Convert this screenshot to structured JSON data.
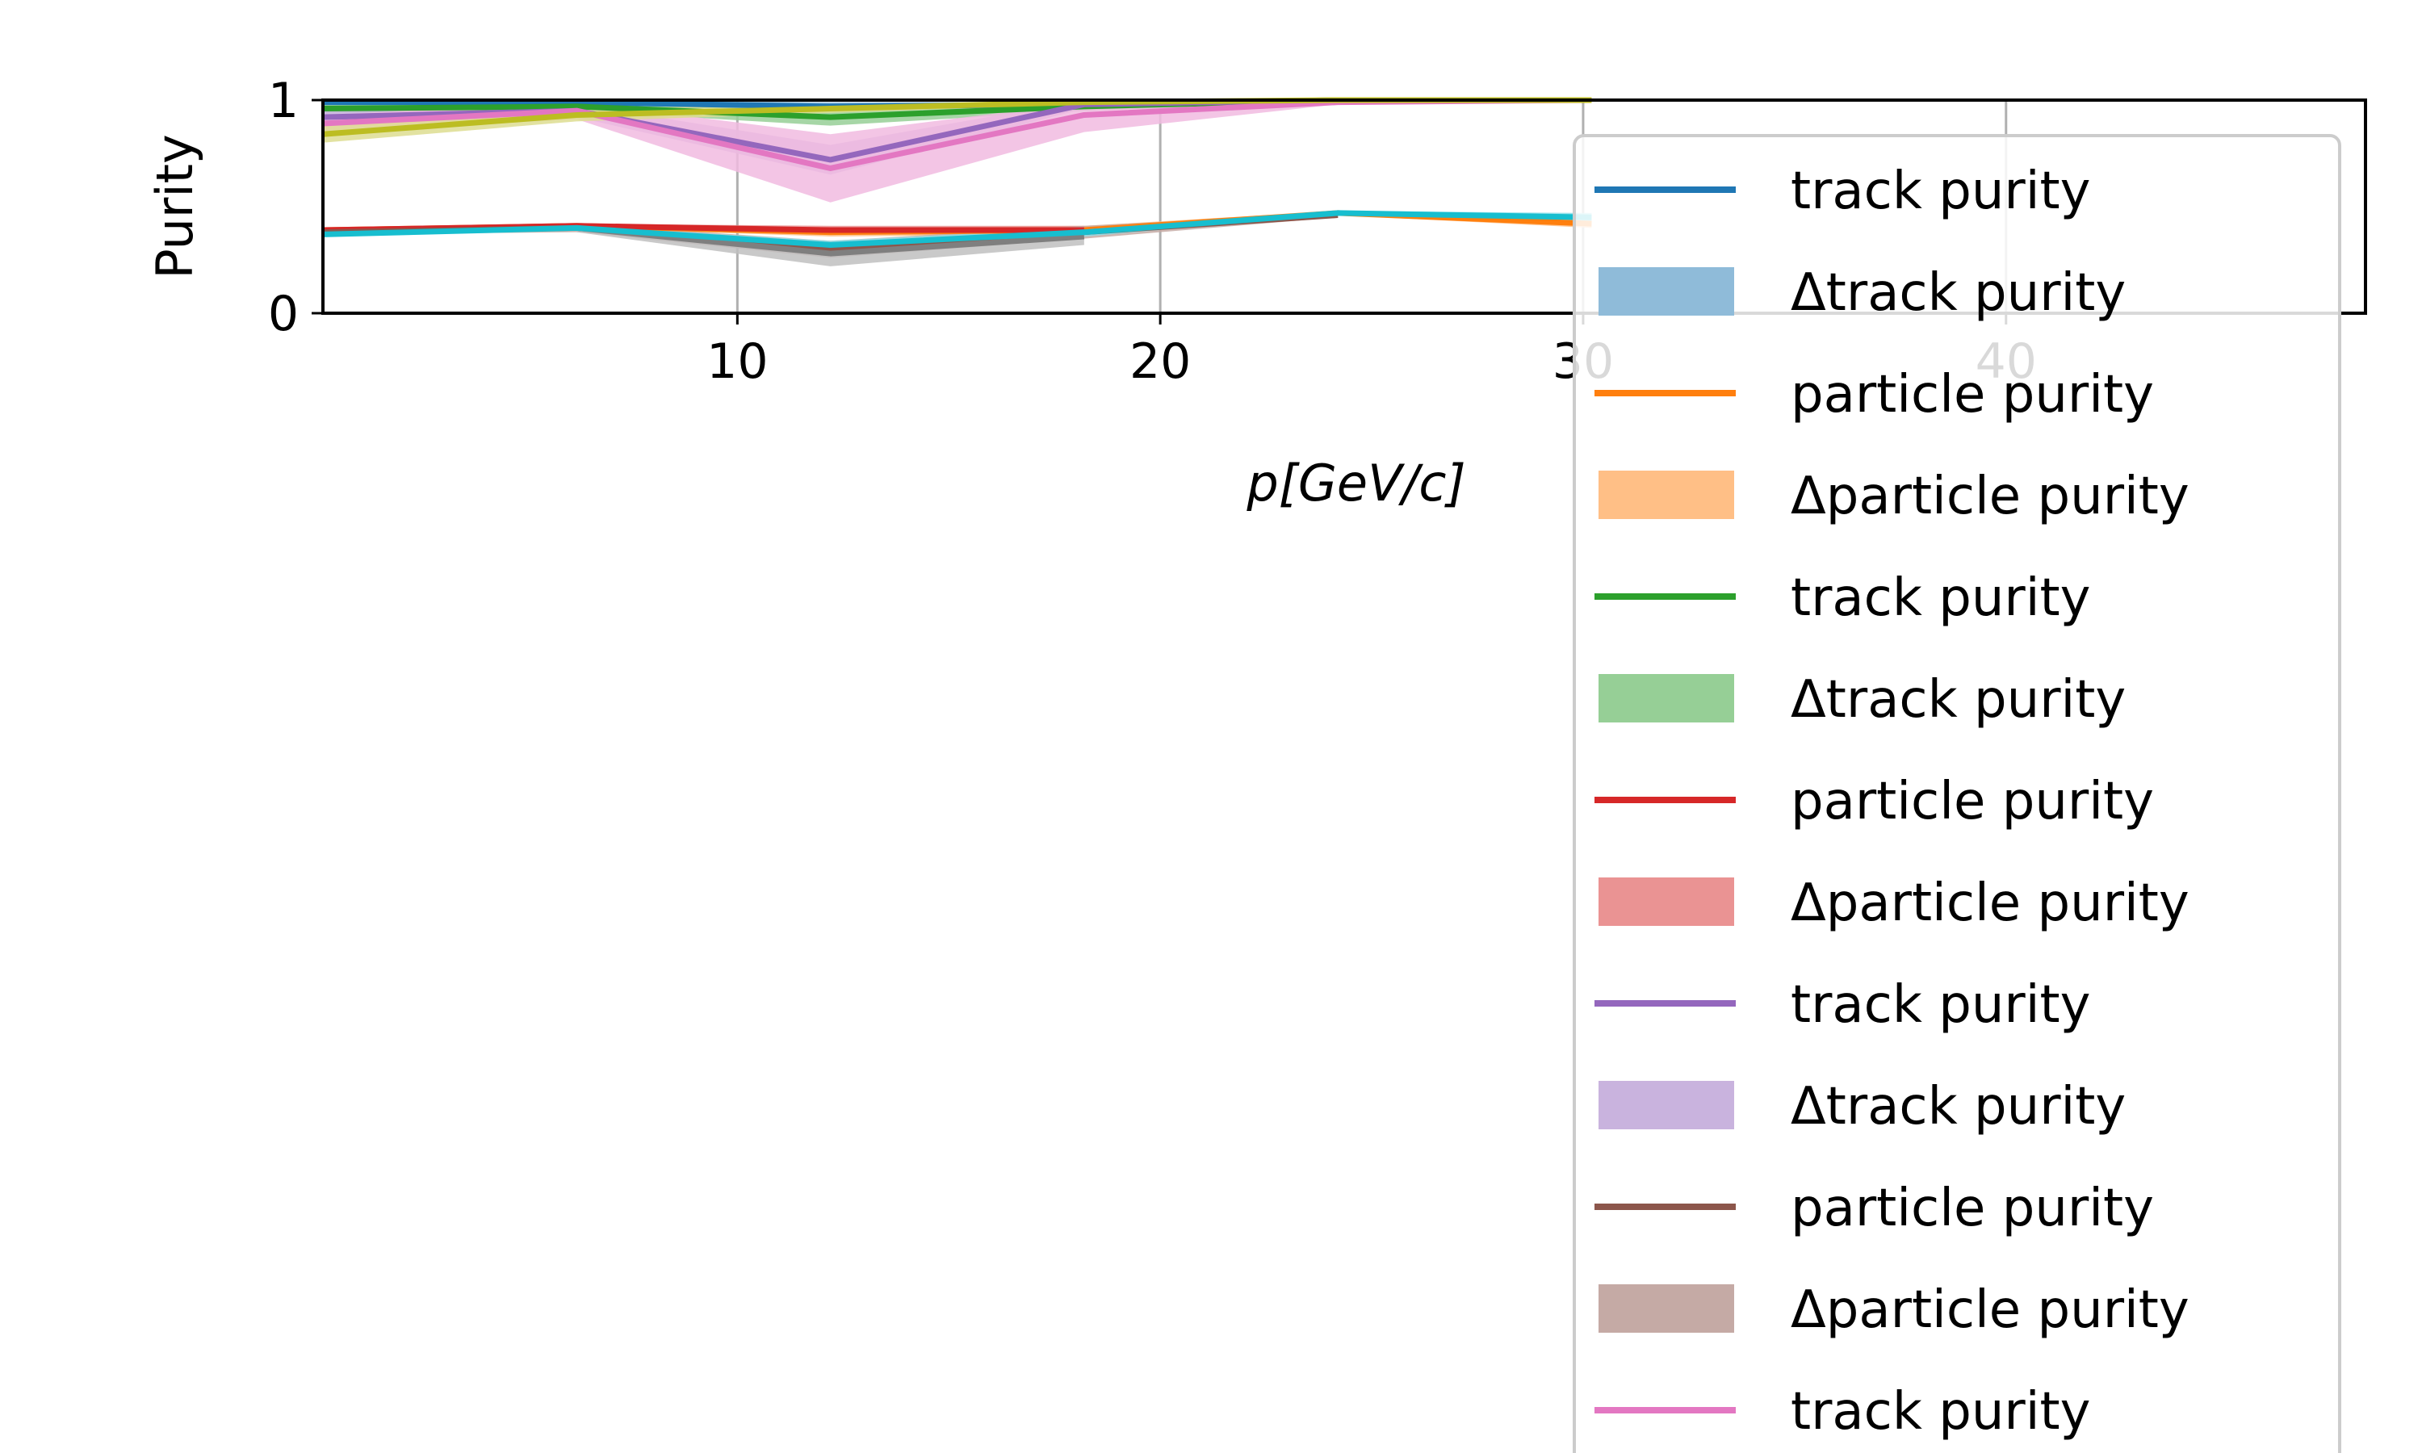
{
  "chart_data": {
    "type": "line",
    "xlabel": "p[GeV/c]",
    "ylabel": "Purity",
    "xlim": [
      0.2,
      48.5
    ],
    "ylim": [
      0,
      1
    ],
    "xticks": [
      10,
      20,
      30,
      40
    ],
    "yticks": [
      0,
      1
    ],
    "grid": true,
    "legend_position": "right",
    "series": [
      {
        "name": "track purity",
        "color": "#1f77b4",
        "band_color": "#8fbbd9",
        "x": [
          0.2,
          6.2,
          12.2,
          18.2,
          24.2,
          30.2
        ],
        "y": [
          0.99,
          0.99,
          0.97,
          0.98,
          1.0,
          1.0
        ],
        "band_lo": [
          0.98,
          0.98,
          0.95,
          0.97,
          0.99,
          0.99
        ],
        "band_hi": [
          1.0,
          1.0,
          0.99,
          0.99,
          1.0,
          1.0
        ]
      },
      {
        "name": "particle purity",
        "color": "#ff7f0e",
        "band_color": "#ffbf86",
        "x": [
          0.2,
          6.2,
          12.2,
          18.2,
          24.2,
          30.2
        ],
        "y": [
          0.39,
          0.41,
          0.38,
          0.39,
          0.47,
          0.42
        ],
        "band_lo": [
          0.38,
          0.4,
          0.36,
          0.37,
          0.46,
          0.4
        ],
        "band_hi": [
          0.4,
          0.42,
          0.4,
          0.41,
          0.48,
          0.44
        ]
      },
      {
        "name": "track purity",
        "color": "#2ca02c",
        "band_color": "#96cf96",
        "x": [
          0.2,
          6.2,
          12.2,
          18.2,
          24.2,
          30.2
        ],
        "y": [
          0.96,
          0.97,
          0.92,
          0.97,
          1.0,
          1.0
        ],
        "band_lo": [
          0.94,
          0.95,
          0.88,
          0.95,
          0.99,
          0.99
        ],
        "band_hi": [
          0.98,
          0.99,
          0.96,
          0.99,
          1.0,
          1.0
        ]
      },
      {
        "name": "particle purity",
        "color": "#d62728",
        "band_color": "#ea9393",
        "x": [
          0.2,
          6.2,
          12.2,
          18.2
        ],
        "y": [
          0.39,
          0.41,
          0.39,
          0.39
        ],
        "band_lo": [
          0.38,
          0.4,
          0.37,
          0.37
        ],
        "band_hi": [
          0.4,
          0.42,
          0.41,
          0.41
        ]
      },
      {
        "name": "track purity",
        "color": "#9467bd",
        "band_color": "#c9b3de",
        "x": [
          0.2,
          6.2,
          12.2,
          18.2,
          24.2,
          30.2
        ],
        "y": [
          0.92,
          0.95,
          0.72,
          0.98,
          1.0,
          1.0
        ],
        "band_lo": [
          0.89,
          0.92,
          0.65,
          0.96,
          0.99,
          0.99
        ],
        "band_hi": [
          0.95,
          0.98,
          0.79,
          1.0,
          1.0,
          1.0
        ]
      },
      {
        "name": "particle purity",
        "color": "#8c564b",
        "band_color": "#c5aaa5",
        "x": [
          0.2,
          6.2,
          12.2,
          18.2,
          24.2
        ],
        "y": [
          0.38,
          0.4,
          0.3,
          0.38,
          0.46
        ],
        "band_lo": [
          0.37,
          0.38,
          0.26,
          0.35,
          0.45
        ],
        "band_hi": [
          0.39,
          0.42,
          0.34,
          0.41,
          0.47
        ]
      },
      {
        "name": "track purity",
        "color": "#e377c2",
        "band_color": "#f1bbe0",
        "x": [
          0.2,
          6.2,
          12.2,
          18.2,
          24.2,
          30.2
        ],
        "y": [
          0.89,
          0.95,
          0.68,
          0.93,
          0.99,
          1.0
        ],
        "band_lo": [
          0.85,
          0.91,
          0.52,
          0.85,
          0.98,
          0.99
        ],
        "band_hi": [
          0.93,
          0.99,
          0.84,
          0.99,
          1.0,
          1.0
        ]
      },
      {
        "name": "particle purity",
        "color": "#7f7f7f",
        "band_color": "#bfbfbf",
        "x": [
          6.2,
          12.2,
          18.2
        ],
        "y": [
          0.4,
          0.28,
          0.36
        ],
        "band_lo": [
          0.38,
          0.22,
          0.32
        ],
        "band_hi": [
          0.42,
          0.33,
          0.4
        ]
      },
      {
        "name": "track purity",
        "color": "#bcbd22",
        "band_color": "#dddd90",
        "x": [
          0.2,
          6.2,
          12.2,
          18.2,
          24.2,
          30.2
        ],
        "y": [
          0.84,
          0.93,
          0.96,
          0.99,
          1.0,
          1.0
        ],
        "band_lo": [
          0.8,
          0.9,
          0.94,
          0.98,
          0.99,
          0.99
        ],
        "band_hi": [
          0.88,
          0.96,
          0.98,
          1.0,
          1.0,
          1.0
        ]
      },
      {
        "name": "particle purity",
        "color": "#17becf",
        "band_color": "#8bdee7",
        "x": [
          0.2,
          6.2,
          12.2,
          18.2,
          24.2,
          30.2
        ],
        "y": [
          0.37,
          0.4,
          0.32,
          0.38,
          0.47,
          0.45
        ],
        "band_lo": [
          0.36,
          0.39,
          0.3,
          0.36,
          0.46,
          0.43
        ],
        "band_hi": [
          0.38,
          0.41,
          0.34,
          0.4,
          0.48,
          0.47
        ]
      }
    ],
    "legend": [
      {
        "label": "track purity",
        "kind": "line",
        "color": "#1f77b4"
      },
      {
        "label": "Δtrack purity",
        "kind": "patch",
        "color": "#8fbbd9"
      },
      {
        "label": "particle purity",
        "kind": "line",
        "color": "#ff7f0e"
      },
      {
        "label": "Δparticle purity",
        "kind": "patch",
        "color": "#ffbf86"
      },
      {
        "label": "track purity",
        "kind": "line",
        "color": "#2ca02c"
      },
      {
        "label": "Δtrack purity",
        "kind": "patch",
        "color": "#96cf96"
      },
      {
        "label": "particle purity",
        "kind": "line",
        "color": "#d62728"
      },
      {
        "label": "Δparticle purity",
        "kind": "patch",
        "color": "#ea9393"
      },
      {
        "label": "track purity",
        "kind": "line",
        "color": "#9467bd"
      },
      {
        "label": "Δtrack purity",
        "kind": "patch",
        "color": "#c9b3de"
      },
      {
        "label": "particle purity",
        "kind": "line",
        "color": "#8c564b"
      },
      {
        "label": "Δparticle purity",
        "kind": "patch",
        "color": "#c5aaa5"
      },
      {
        "label": "track purity",
        "kind": "line",
        "color": "#e377c2"
      }
    ]
  }
}
